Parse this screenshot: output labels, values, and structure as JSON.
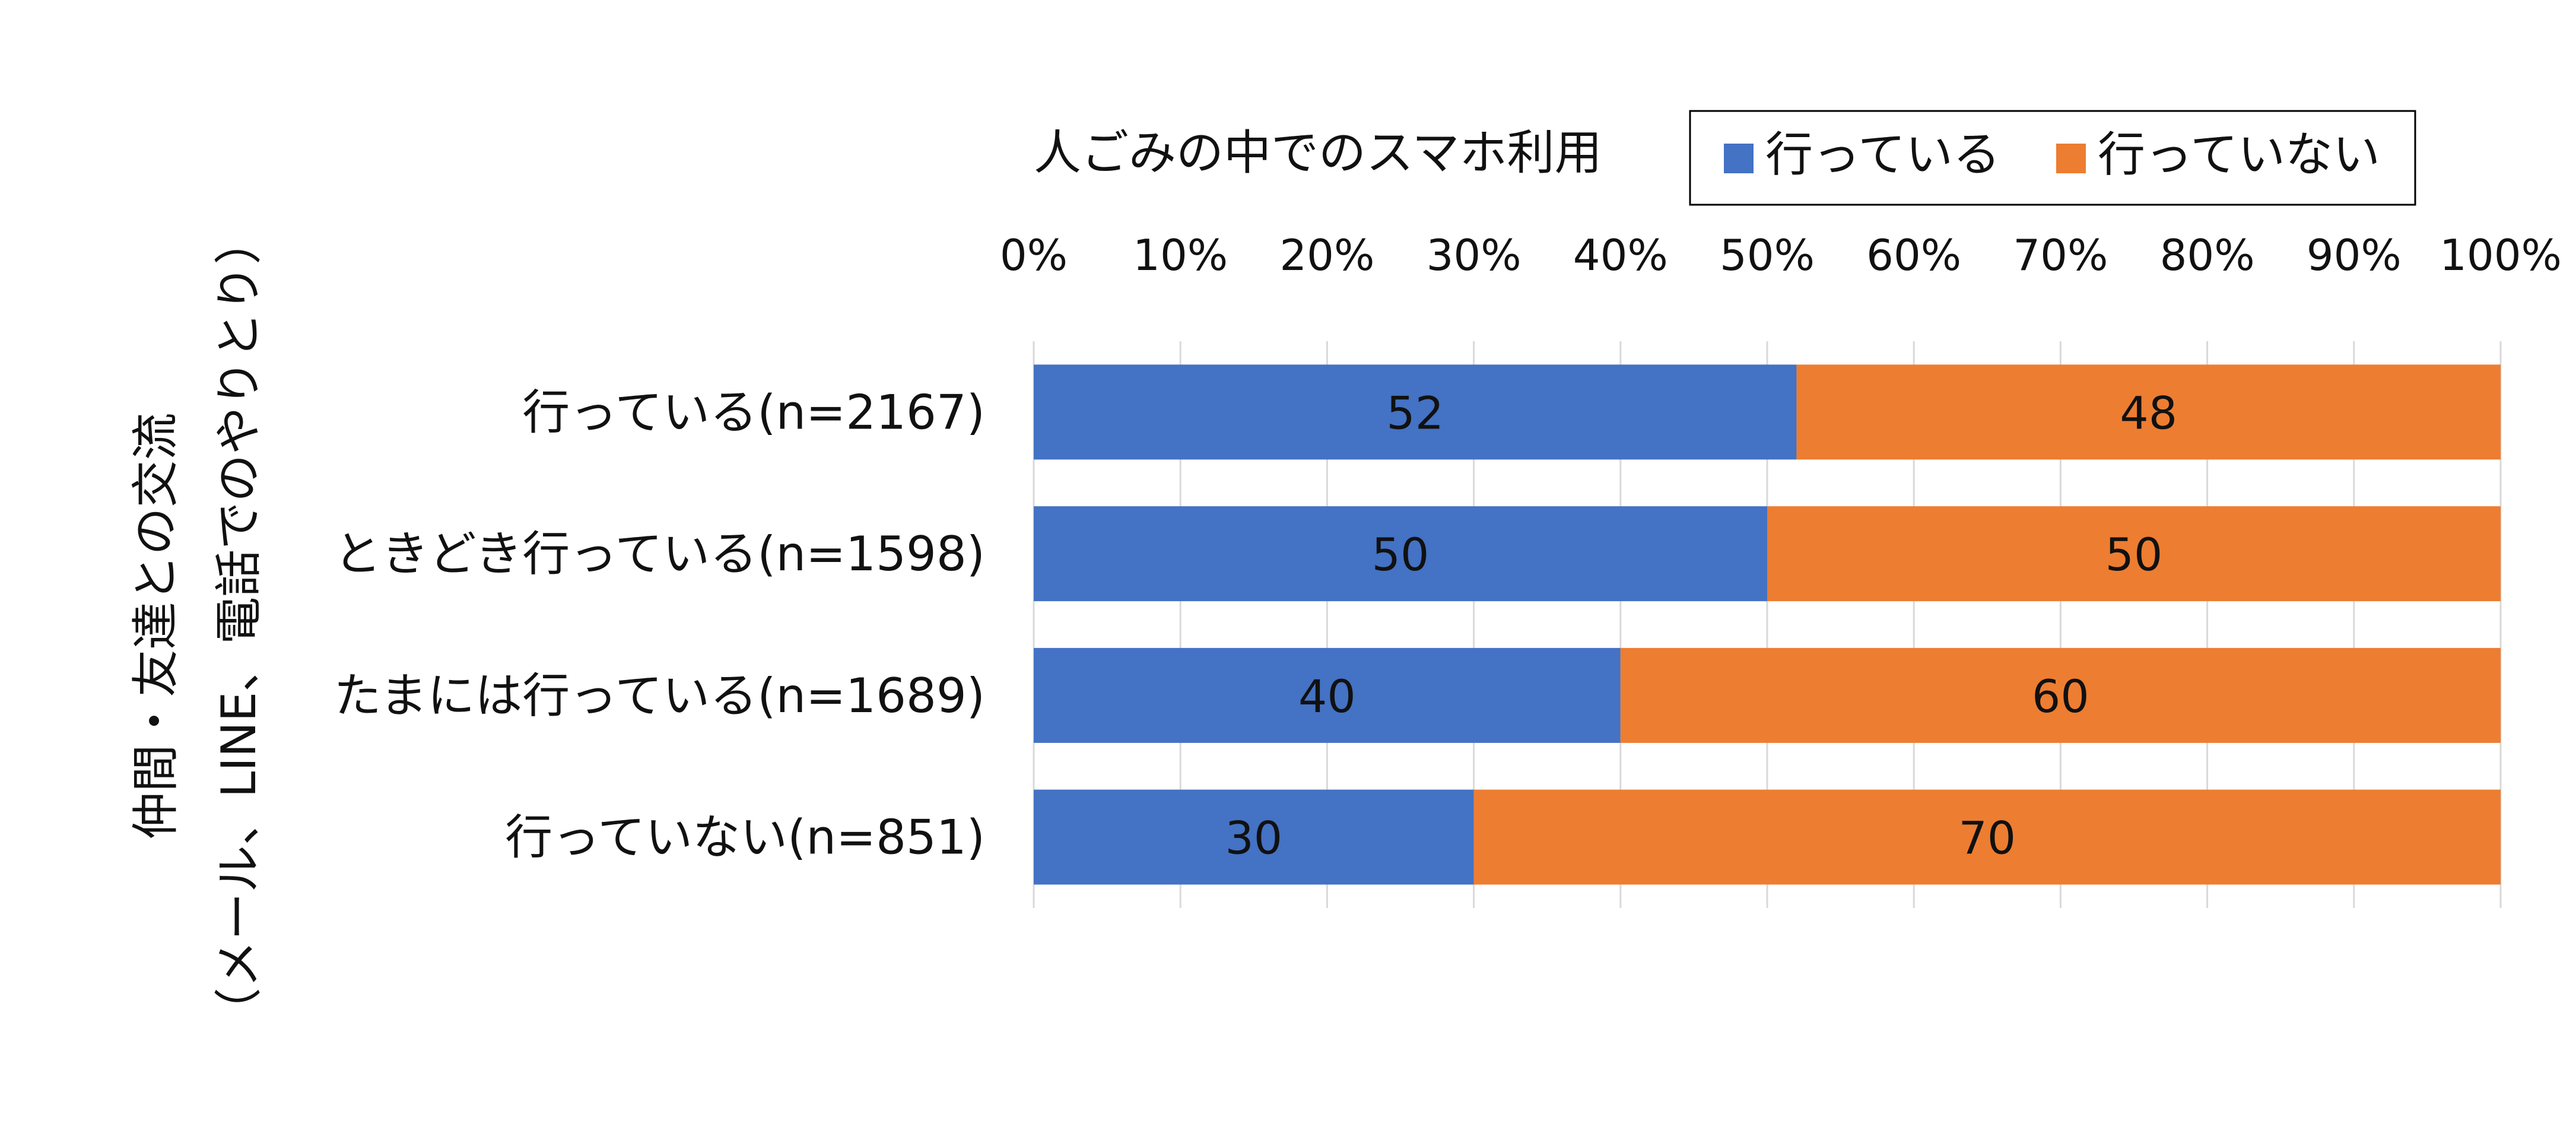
{
  "chart_data": {
    "type": "bar",
    "orientation": "horizontal",
    "stacked": true,
    "legend_title": "人ごみの中でのスマホ利用",
    "legend_position": "top",
    "ylabel_lines": [
      "仲間・友達との交流",
      "（メール、LINE、電話でのやりとり）"
    ],
    "categories": [
      "行っている(n=2167)",
      "ときどき行っている(n=1598)",
      "たまには行っている(n=1689)",
      "行っていない(n=851)"
    ],
    "series": [
      {
        "name": "行っている",
        "color": "#4472C4",
        "values": [
          52,
          50,
          40,
          30
        ]
      },
      {
        "name": "行っていない",
        "color": "#ED7D31",
        "values": [
          48,
          50,
          60,
          70
        ]
      }
    ],
    "xlim": [
      0,
      100
    ],
    "xticks": [
      "0%",
      "10%",
      "20%",
      "30%",
      "40%",
      "50%",
      "60%",
      "70%",
      "80%",
      "90%",
      "100%"
    ],
    "x_axis_position": "top",
    "grid": true
  }
}
